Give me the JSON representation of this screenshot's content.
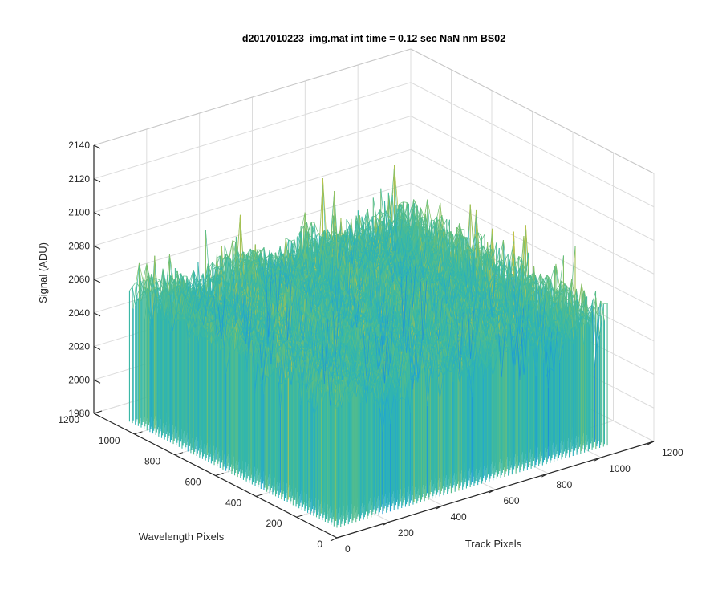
{
  "chart_data": {
    "type": "surface3d",
    "title": "d2017010223_img.mat int time = 0.12 sec  NaN nm BS02",
    "xlabel": "Track Pixels",
    "ylabel": "Wavelength Pixels",
    "zlabel": "Signal (ADU)",
    "xlim": [
      0,
      1200
    ],
    "ylim": [
      0,
      1200
    ],
    "zlim": [
      1980,
      2140
    ],
    "x_ticks": [
      "0",
      "200",
      "400",
      "600",
      "800",
      "1000",
      "1200"
    ],
    "y_ticks": [
      "0",
      "200",
      "400",
      "600",
      "800",
      "1000",
      "1200"
    ],
    "z_ticks": [
      "1980",
      "2000",
      "2020",
      "2040",
      "2060",
      "2080",
      "2100",
      "2120",
      "2140"
    ],
    "grid": true,
    "data_extent": {
      "x": [
        0,
        1024
      ],
      "y": [
        0,
        1024
      ]
    },
    "signal_range": [
      2000,
      2130
    ],
    "colormap": [
      "#0f5fd6",
      "#1888e0",
      "#22a8cf",
      "#35b8a8",
      "#73c070",
      "#b6c24a",
      "#e3c33a"
    ]
  }
}
